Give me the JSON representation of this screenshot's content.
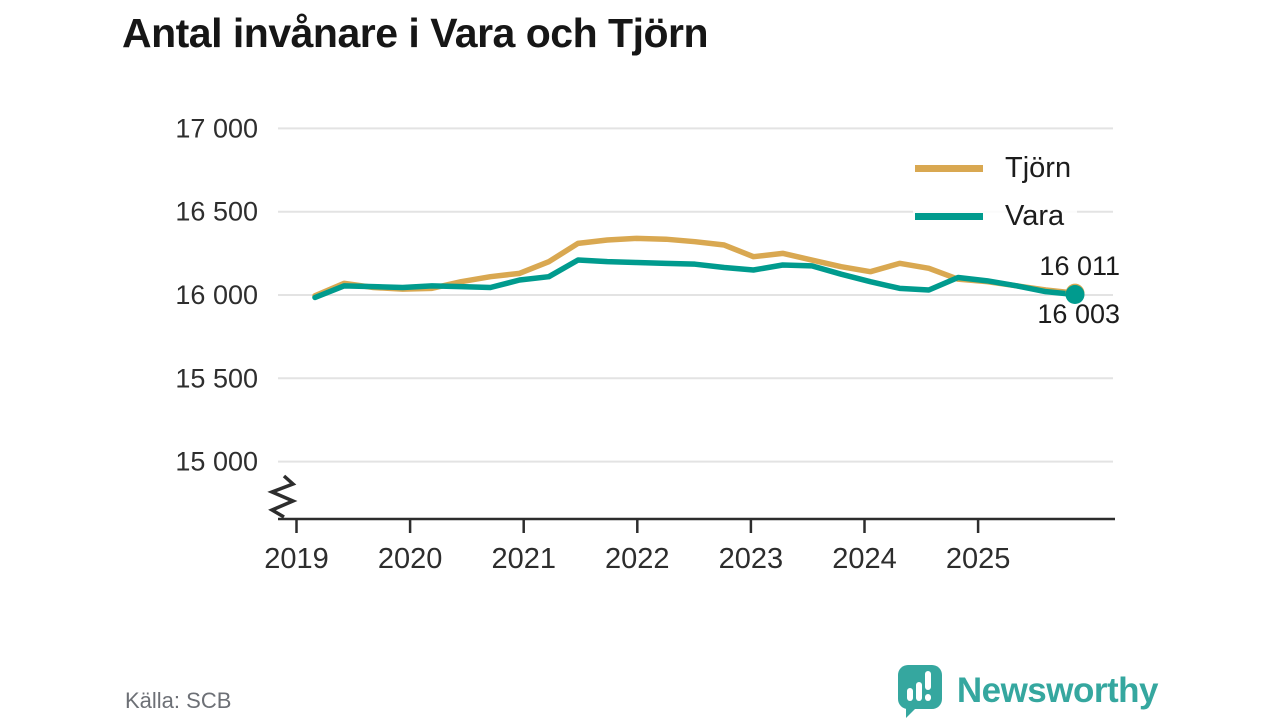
{
  "header": {
    "title": "Antal invånare i Vara och Tjörn"
  },
  "footer": {
    "source": "Källa: SCB",
    "brand_name": "Newsworthy",
    "brand_color": "#35a79f"
  },
  "chart_data": {
    "type": "line",
    "title": "Antal invånare i Vara och Tjörn",
    "x": [
      "2019 Q1",
      "2019 Q2",
      "2019 Q3",
      "2019 Q4",
      "2020 Q1",
      "2020 Q2",
      "2020 Q3",
      "2020 Q4",
      "2021 Q1",
      "2021 Q2",
      "2021 Q3",
      "2021 Q4",
      "2022 Q1",
      "2022 Q2",
      "2022 Q3",
      "2022 Q4",
      "2023 Q1",
      "2023 Q2",
      "2023 Q3",
      "2023 Q4",
      "2024 Q1",
      "2024 Q2",
      "2024 Q3",
      "2024 Q4",
      "2025 Q1",
      "2025 Q2",
      "2025 Q3"
    ],
    "x_axis": {
      "tick_labels": [
        "2019",
        "2020",
        "2021",
        "2022",
        "2023",
        "2024",
        "2025"
      ]
    },
    "y_axis": {
      "ticks": [
        17000,
        16500,
        16000,
        15500,
        15000
      ],
      "tick_labels": [
        "17 000",
        "16 500",
        "16 000",
        "15 500",
        "15 000"
      ],
      "axis_break": true
    },
    "series": [
      {
        "name": "Tjörn",
        "color": "#d9a851",
        "end_label": "16 011",
        "values": [
          15995,
          16070,
          16045,
          16035,
          16040,
          16080,
          16110,
          16130,
          16200,
          16310,
          16330,
          16340,
          16335,
          16320,
          16300,
          16230,
          16250,
          16210,
          16170,
          16140,
          16190,
          16160,
          16095,
          16080,
          16055,
          16030,
          16011
        ]
      },
      {
        "name": "Vara",
        "color": "#009b8e",
        "end_label": "16 003",
        "values": [
          15985,
          16055,
          16050,
          16045,
          16055,
          16050,
          16045,
          16090,
          16110,
          16210,
          16200,
          16195,
          16190,
          16185,
          16165,
          16150,
          16180,
          16175,
          16125,
          16080,
          16040,
          16030,
          16105,
          16085,
          16055,
          16020,
          16003
        ]
      }
    ],
    "legend_position": "top-right",
    "grid": "horizontal-only"
  }
}
